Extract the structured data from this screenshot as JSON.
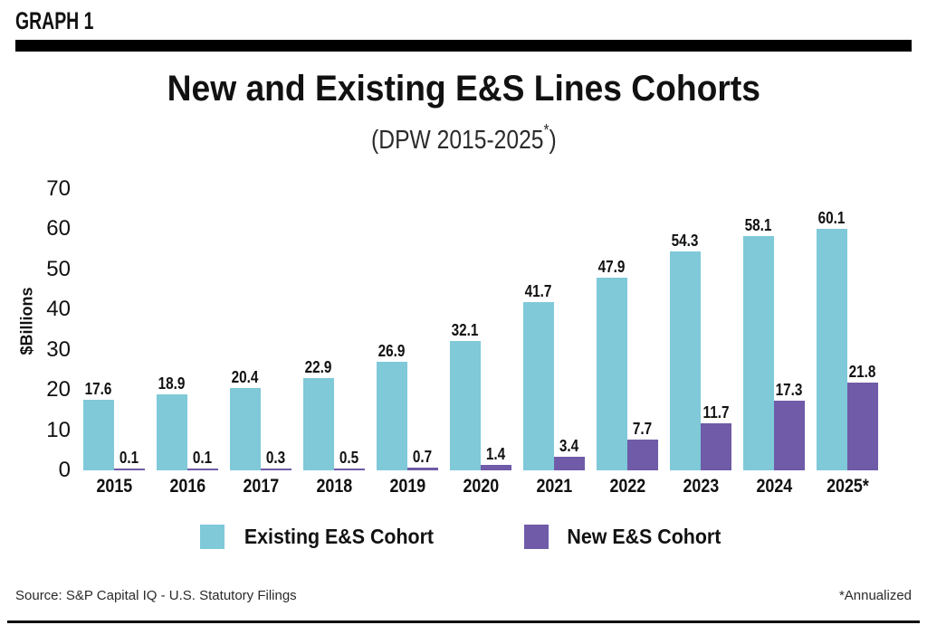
{
  "header": {
    "graph_label": "GRAPH 1"
  },
  "title": "New and Existing E&S Lines Cohorts",
  "subtitle": {
    "pre": "(DPW 2015-2025",
    "sup": "*",
    "post": ")"
  },
  "ylabel": "$Billions",
  "colors": {
    "existing": "#7FC9D9",
    "new": "#6F5BA8",
    "bar_black": "#000000"
  },
  "legend": [
    {
      "label": "Existing E&S Cohort",
      "color": "#7FC9D9"
    },
    {
      "label": "New E&S Cohort",
      "color": "#6F5BA8"
    }
  ],
  "footer": {
    "source": "Source: S&P Capital IQ - U.S. Statutory Filings",
    "note": "*Annualized"
  },
  "chart_data": {
    "type": "bar",
    "title": "New and Existing E&S Lines Cohorts",
    "subtitle": "(DPW 2015-2025*)",
    "categories": [
      "2015",
      "2016",
      "2017",
      "2018",
      "2019",
      "2020",
      "2021",
      "2022",
      "2023",
      "2024",
      "2025*"
    ],
    "series": [
      {
        "name": "Existing E&S Cohort",
        "color": "#7FC9D9",
        "values": [
          17.6,
          18.9,
          20.4,
          22.9,
          26.9,
          32.1,
          41.7,
          47.9,
          54.3,
          58.1,
          60.1
        ]
      },
      {
        "name": "New E&S Cohort",
        "color": "#6F5BA8",
        "values": [
          0.1,
          0.1,
          0.3,
          0.5,
          0.7,
          1.4,
          3.4,
          7.7,
          11.7,
          17.3,
          21.8
        ]
      }
    ],
    "xlabel": "",
    "ylabel": "$Billions",
    "ylim": [
      0,
      70
    ],
    "yticks": [
      0,
      10,
      20,
      30,
      40,
      50,
      60,
      70
    ],
    "grid": false,
    "legend_position": "bottom",
    "data_labels": true
  }
}
